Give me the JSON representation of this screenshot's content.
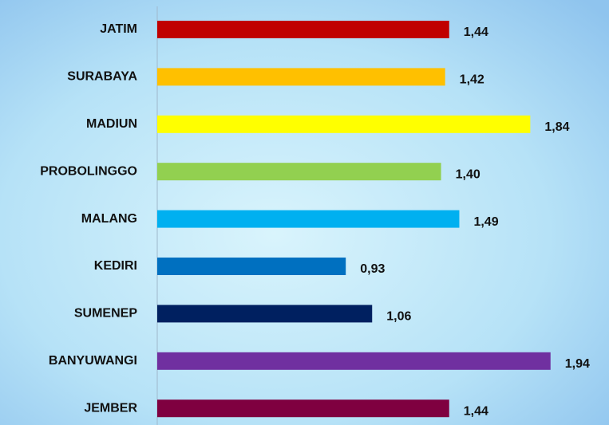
{
  "chart_data": {
    "type": "bar",
    "orientation": "horizontal",
    "categories": [
      "JATIM",
      "SURABAYA",
      "MADIUN",
      "PROBOLINGGO",
      "MALANG",
      "KEDIRI",
      "SUMENEP",
      "BANYUWANGI",
      "JEMBER"
    ],
    "values": [
      1.44,
      1.42,
      1.84,
      1.4,
      1.49,
      0.93,
      1.06,
      1.94,
      1.44
    ],
    "value_labels": [
      "1,44",
      "1,42",
      "1,84",
      "1,40",
      "1,49",
      "0,93",
      "1,06",
      "1,94",
      "1,44"
    ],
    "colors": [
      "#c00000",
      "#ffc000",
      "#ffff00",
      "#92d050",
      "#00b0f0",
      "#0070c0",
      "#002060",
      "#7030a0",
      "#7f0040"
    ]
  }
}
